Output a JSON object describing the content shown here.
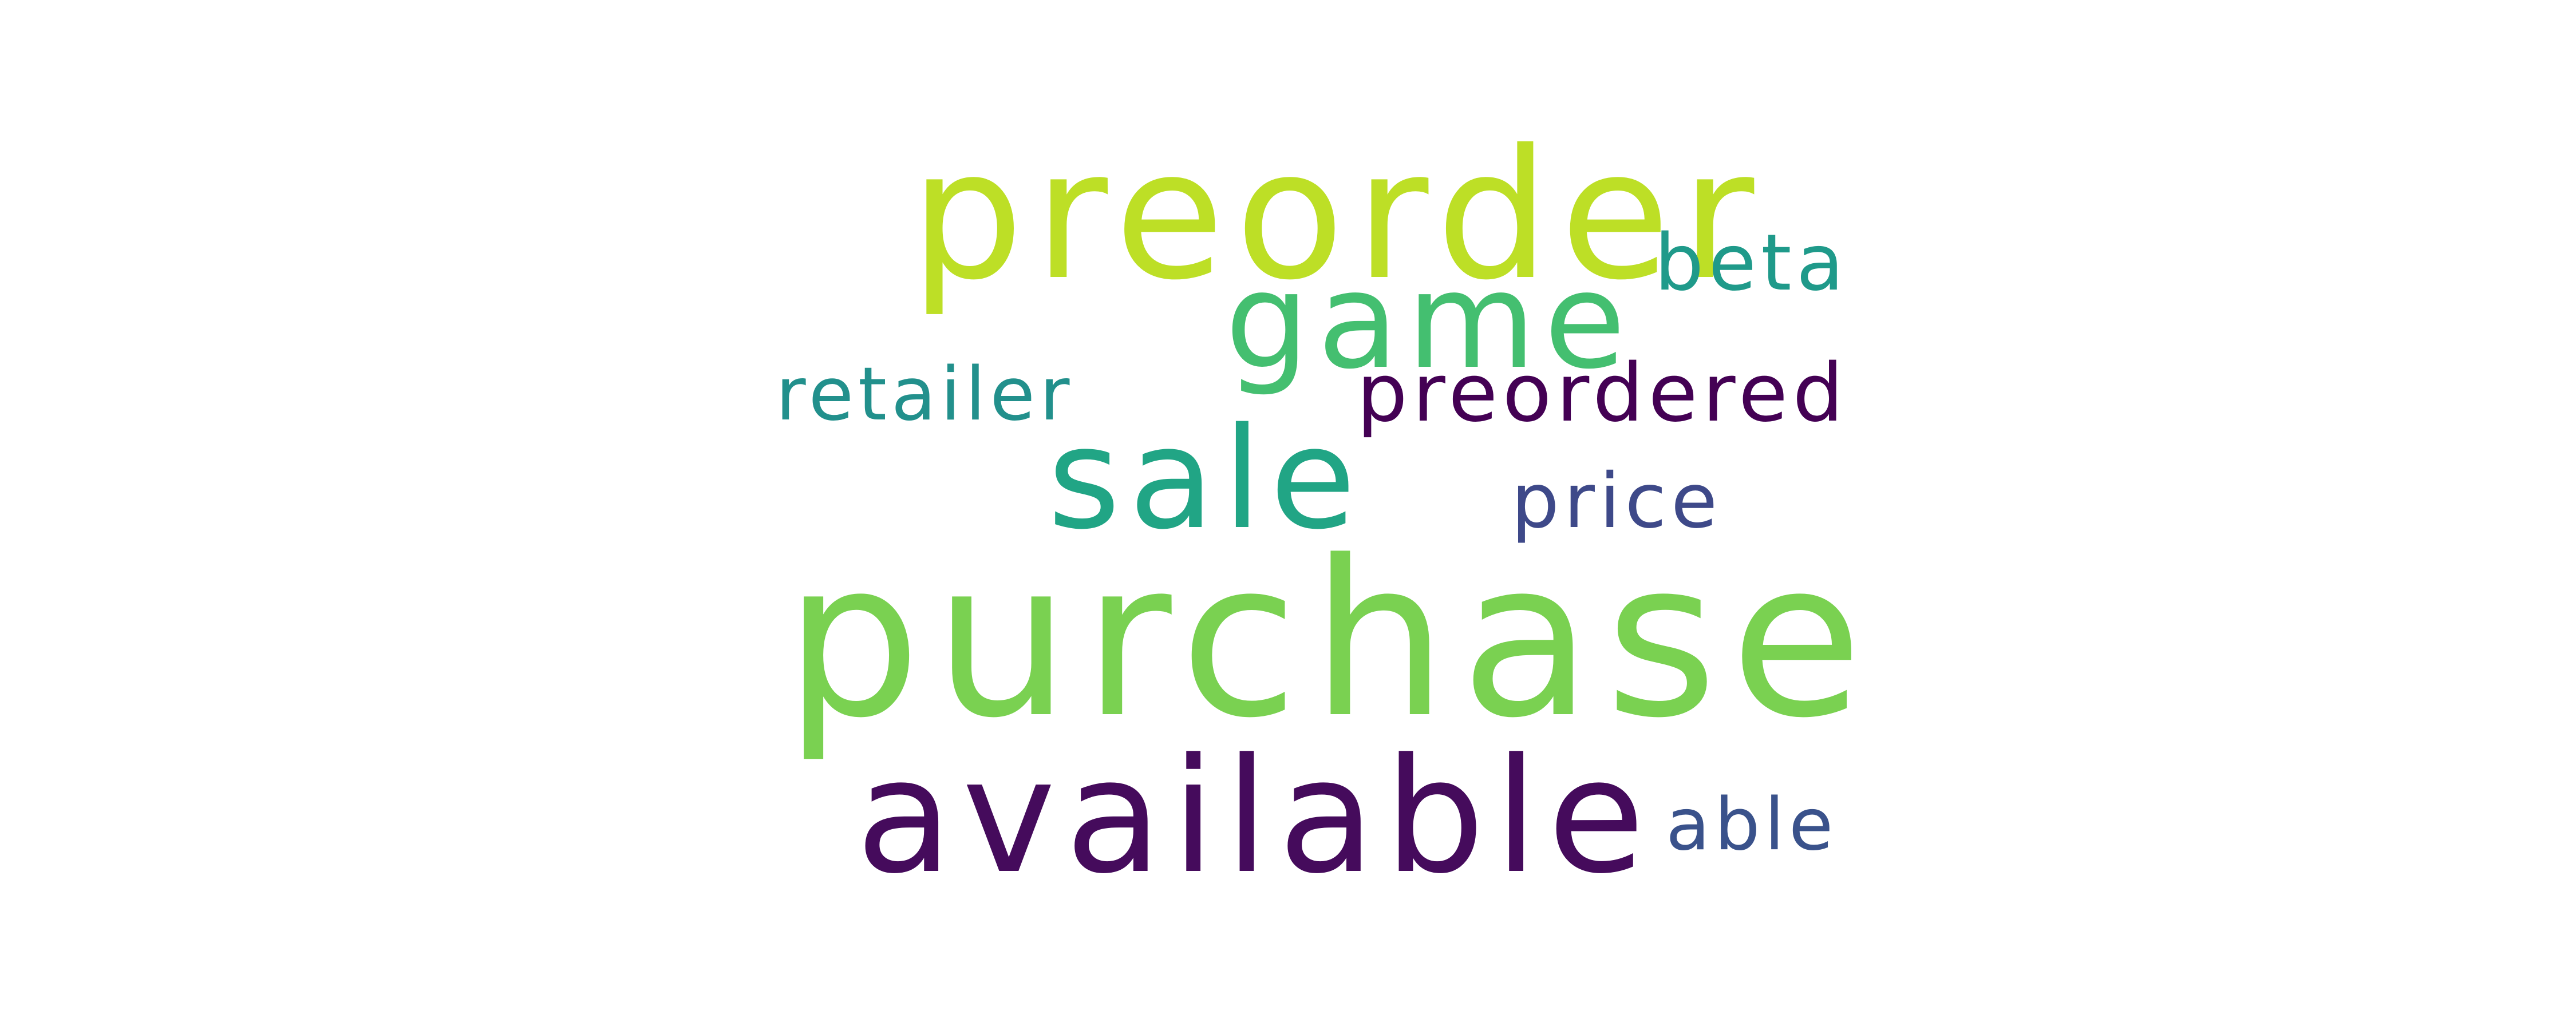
{
  "words": [
    {
      "text": "purchase",
      "color": "#7ad151"
    },
    {
      "text": "available",
      "color": "#450b5c"
    },
    {
      "text": "preorder",
      "color": "#bddf26"
    },
    {
      "text": "game",
      "color": "#44bf70"
    },
    {
      "text": "sale",
      "color": "#21a585"
    },
    {
      "text": "preordered",
      "color": "#440154"
    },
    {
      "text": "retailer",
      "color": "#22908c"
    },
    {
      "text": "beta",
      "color": "#1f9a8a"
    },
    {
      "text": "price",
      "color": "#3e4989"
    },
    {
      "text": "able",
      "color": "#3a528b"
    }
  ]
}
